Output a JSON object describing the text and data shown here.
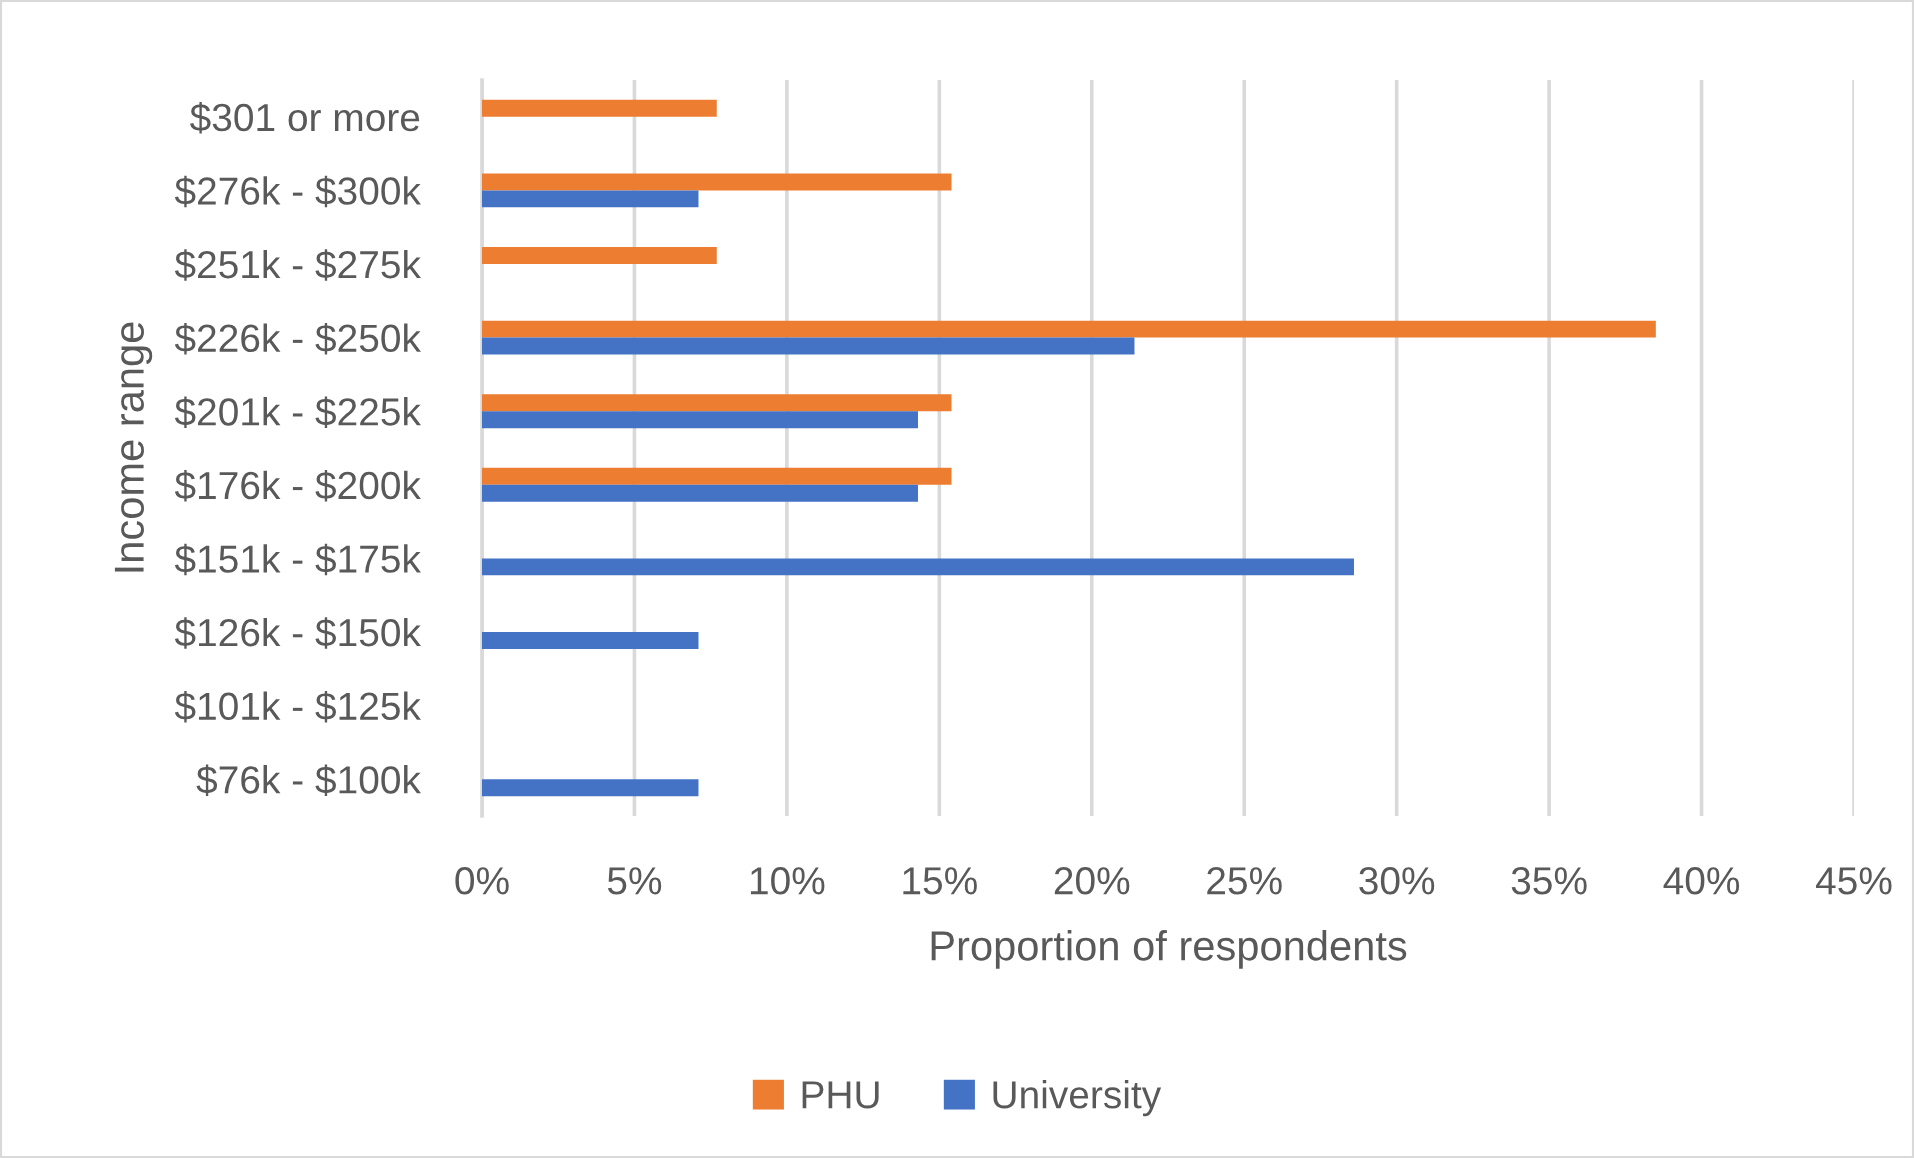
{
  "chart_data": {
    "type": "bar",
    "orientation": "horizontal",
    "categories": [
      "$301 or more",
      "$276k - $300k",
      "$251k - $275k",
      "$226k - $250k",
      "$201k - $225k",
      "$176k - $200k",
      "$151k - $175k",
      "$126k - $150k",
      "$101k - $125k",
      "$76k - $100k"
    ],
    "series": [
      {
        "name": "PHU",
        "color": "#ed7d31",
        "values": [
          7.7,
          15.4,
          7.7,
          38.5,
          15.4,
          15.4,
          null,
          null,
          null,
          null
        ]
      },
      {
        "name": "University",
        "color": "#4472c4",
        "values": [
          null,
          7.1,
          null,
          21.4,
          14.3,
          14.3,
          28.6,
          7.1,
          null,
          7.1
        ]
      }
    ],
    "xlabel": "Proportion of respondents",
    "ylabel": "Income range",
    "xlim": [
      0,
      45
    ],
    "xticks": [
      {
        "value": 0,
        "label": "0%"
      },
      {
        "value": 5,
        "label": "5%"
      },
      {
        "value": 10,
        "label": "10%"
      },
      {
        "value": 15,
        "label": "15%"
      },
      {
        "value": 20,
        "label": "20%"
      },
      {
        "value": 25,
        "label": "25%"
      },
      {
        "value": 30,
        "label": "30%"
      },
      {
        "value": 35,
        "label": "35%"
      },
      {
        "value": 40,
        "label": "40%"
      },
      {
        "value": 45,
        "label": "45%"
      }
    ],
    "grid": "x",
    "legend": "bottom"
  }
}
